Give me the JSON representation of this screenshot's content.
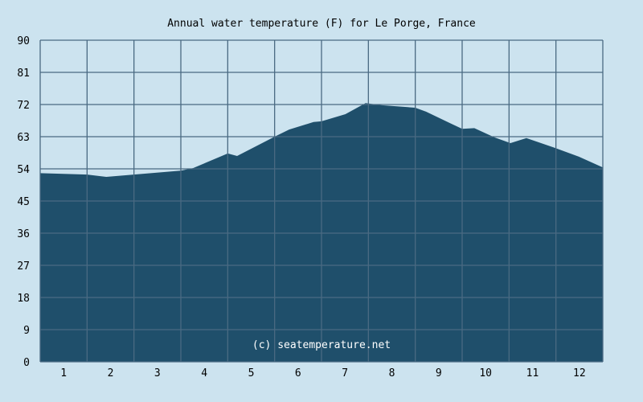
{
  "chart_data": {
    "type": "area",
    "title": "Annual water temperature (F) for Le Porge, France",
    "xlabel": "",
    "ylabel": "",
    "ylim": [
      0,
      90
    ],
    "xlim": [
      0,
      12
    ],
    "y_ticks": [
      0,
      9,
      18,
      27,
      36,
      45,
      54,
      63,
      72,
      81,
      90
    ],
    "x_tick_labels": [
      "1",
      "2",
      "3",
      "4",
      "5",
      "6",
      "7",
      "8",
      "9",
      "10",
      "11",
      "12"
    ],
    "grid": true,
    "annotation": "(c) seatemperature.net",
    "series": [
      {
        "name": "Water temperature (F)",
        "color": "#1f4f6b",
        "points": [
          [
            0,
            52.8
          ],
          [
            1,
            52.4
          ],
          [
            1.41,
            51.75
          ],
          [
            2,
            52.4
          ],
          [
            3,
            53.5
          ],
          [
            3.26,
            54.2
          ],
          [
            4,
            58.3
          ],
          [
            4.2,
            57.6
          ],
          [
            5,
            63
          ],
          [
            5.31,
            65
          ],
          [
            5.83,
            67.1
          ],
          [
            6,
            67.3
          ],
          [
            6.51,
            69.3
          ],
          [
            6.94,
            72.4
          ],
          [
            7.29,
            71.8
          ],
          [
            8,
            71.1
          ],
          [
            8.23,
            70
          ],
          [
            8.74,
            66.8
          ],
          [
            9,
            65.2
          ],
          [
            9.26,
            65.4
          ],
          [
            9.69,
            62.8
          ],
          [
            10.03,
            61.2
          ],
          [
            10.37,
            62.6
          ],
          [
            10.97,
            59.9
          ],
          [
            11.49,
            57.4
          ],
          [
            12,
            54.4
          ]
        ]
      }
    ]
  }
}
